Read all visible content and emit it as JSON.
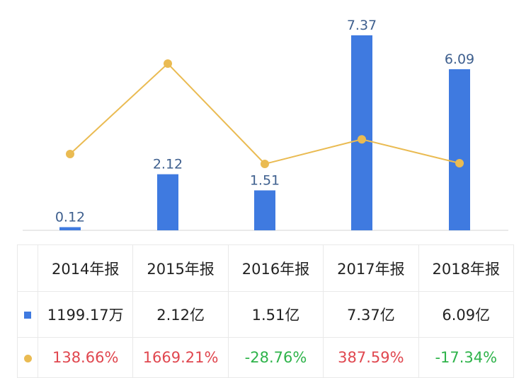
{
  "chart_data": {
    "type": "bar",
    "categories": [
      "2014年报",
      "2015年报",
      "2016年报",
      "2017年报",
      "2018年报"
    ],
    "series": [
      {
        "type": "bar",
        "values": [
          0.12,
          2.12,
          1.51,
          7.37,
          6.09
        ],
        "labels": [
          "0.12",
          "2.12",
          "1.51",
          "7.37",
          "6.09"
        ],
        "color": "#3f7ae0"
      },
      {
        "type": "line",
        "values": [
          138.66,
          1669.21,
          -28.76,
          387.59,
          -17.34
        ],
        "color": "#eabb52"
      }
    ],
    "ylim": [
      0,
      7.37
    ],
    "grid": false,
    "legend": "none"
  },
  "table": {
    "header": [
      "2014年报",
      "2015年报",
      "2016年报",
      "2017年报",
      "2018年报"
    ],
    "revenue_row": [
      "1199.17万",
      "2.12亿",
      "1.51亿",
      "7.37亿",
      "6.09亿"
    ],
    "growth_row": [
      "138.66%",
      "1669.21%",
      "-28.76%",
      "387.59%",
      "-17.34%"
    ]
  },
  "colors": {
    "bar": "#3f7ae0",
    "line": "#eabb52",
    "positive": "#e0474f",
    "negative": "#2eb34a",
    "bar_label": "#3e5f8e"
  }
}
